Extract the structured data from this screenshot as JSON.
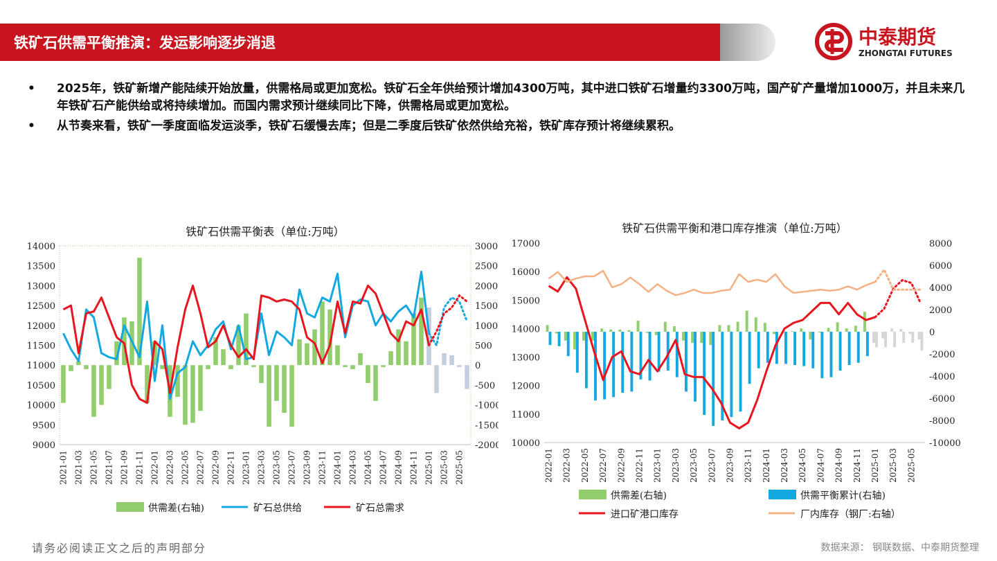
{
  "header": {
    "title": "铁矿石供需平衡推演：发运影响逐步消退"
  },
  "logo": {
    "name": "中泰期货",
    "subtitle": "ZHONGTAI FUTURES",
    "brand_color": "#c8141e"
  },
  "bullets": [
    "2025年，铁矿新增产能陆续开始放量，供需格局或更加宽松。铁矿石全年供给预计增加4300万吨，其中进口铁矿石增量约3300万吨，国产矿产量增加1000万，并且未来几年铁矿石产能供给或将持续增加。而国内需求预计继续同比下降，供需格局或更加宽松。",
    "从节奏来看，铁矿一季度面临发运淡季，铁矿石缓慢去库；但是二季度后铁矿依然供给充裕，铁矿库存预计将继续累积。"
  ],
  "footer": {
    "disclaimer": "请务必阅读正文之后的声明部分",
    "source": "数据来源：  钢联数据、中泰期货整理"
  },
  "chart_data": [
    {
      "type": "line",
      "title": "铁矿石供需平衡表（单位:万吨）",
      "x": [
        "2021-01",
        "2021-02",
        "2021-03",
        "2021-04",
        "2021-05",
        "2021-06",
        "2021-07",
        "2021-08",
        "2021-09",
        "2021-10",
        "2021-11",
        "2021-12",
        "2022-01",
        "2022-02",
        "2022-03",
        "2022-04",
        "2022-05",
        "2022-06",
        "2022-07",
        "2022-08",
        "2022-09",
        "2022-10",
        "2022-11",
        "2022-12",
        "2023-01",
        "2023-02",
        "2023-03",
        "2023-04",
        "2023-05",
        "2023-06",
        "2023-07",
        "2023-08",
        "2023-09",
        "2023-10",
        "2023-11",
        "2023-12",
        "2024-01",
        "2024-02",
        "2024-03",
        "2024-04",
        "2024-05",
        "2024-06",
        "2024-07",
        "2024-08",
        "2024-09",
        "2024-10",
        "2024-11",
        "2024-12",
        "2025-01",
        "2025-02",
        "2025-03",
        "2025-04",
        "2025-05",
        "2025-06"
      ],
      "x_tick_labels": [
        "2021-01",
        "2021-03",
        "2021-05",
        "2021-07",
        "2021-09",
        "2021-11",
        "2022-01",
        "2022-03",
        "2022-05",
        "2022-07",
        "2022-09",
        "2022-11",
        "2023-01",
        "2023-03",
        "2023-05",
        "2023-07",
        "2023-09",
        "2023-11",
        "2024-01",
        "2024-03",
        "2024-05",
        "2024-07",
        "2024-09",
        "2024-11",
        "2025-01",
        "2025-03",
        "2025-05"
      ],
      "ylim_left": [
        9000,
        14000
      ],
      "yticks_left": [
        9000,
        9500,
        10000,
        10500,
        11000,
        11500,
        12000,
        12500,
        13000,
        13500,
        14000
      ],
      "ylim_right": [
        -2000,
        3000
      ],
      "yticks_right": [
        -2000,
        -1500,
        -1000,
        -500,
        0,
        500,
        1000,
        1500,
        2000,
        2500,
        3000
      ],
      "forecast_from_index": 48,
      "series": [
        {
          "name": "供需差(右轴)",
          "type": "bar",
          "axis": "right",
          "color": "#92cd6e",
          "forecast_color": "#b8c7d8",
          "values": [
            -950,
            -150,
            100,
            -100,
            -1300,
            -1000,
            -600,
            600,
            1200,
            1100,
            2700,
            -950,
            600,
            -100,
            -1300,
            -800,
            -1500,
            -1450,
            -1150,
            -100,
            700,
            400,
            -100,
            1000,
            1300,
            -50,
            -450,
            -1550,
            -900,
            -1200,
            -1550,
            650,
            550,
            900,
            1600,
            1400,
            500,
            -50,
            -100,
            300,
            -450,
            -900,
            -50,
            350,
            900,
            600,
            1300,
            1700,
            1450,
            -700,
            300,
            250,
            -50,
            -600
          ]
        },
        {
          "name": "矿石总供给",
          "type": "line",
          "axis": "left",
          "color": "#13a8e0",
          "values": [
            11800,
            11400,
            11100,
            12400,
            12200,
            11300,
            11200,
            11150,
            12000,
            11600,
            11200,
            12600,
            10600,
            12000,
            10150,
            10800,
            10950,
            11600,
            11250,
            11500,
            11900,
            12100,
            11400,
            12000,
            11150,
            11200,
            12300,
            11250,
            11850,
            11700,
            11500,
            12900,
            12300,
            12200,
            12700,
            12600,
            13300,
            11700,
            12500,
            12650,
            12600,
            12000,
            12300,
            12100,
            12350,
            12500,
            12200,
            13350,
            11800,
            11500,
            12450,
            12700,
            12600,
            12100
          ]
        },
        {
          "name": "矿石总需求",
          "type": "line",
          "axis": "left",
          "color": "#e8141e",
          "values": [
            12400,
            12500,
            11300,
            12300,
            12350,
            12700,
            12200,
            11700,
            11550,
            10500,
            10150,
            10050,
            11600,
            11400,
            10300,
            11450,
            12400,
            13000,
            12300,
            11450,
            11600,
            12000,
            11500,
            11200,
            11400,
            11150,
            12750,
            12700,
            12600,
            12650,
            12600,
            12400,
            11700,
            11550,
            11050,
            11500,
            12600,
            11800,
            12600,
            12550,
            13000,
            12800,
            12300,
            11800,
            11600,
            12100,
            12000,
            12400,
            11500,
            11850,
            12300,
            12450,
            12750,
            12600
          ]
        }
      ],
      "legend": [
        "供需差(右轴)",
        "矿石总供给",
        "矿石总需求"
      ],
      "legend_position": "bottom"
    },
    {
      "type": "line",
      "title": "铁矿石供需平衡和港口库存推演（单位:万吨）",
      "x": [
        "2022-01",
        "2022-02",
        "2022-03",
        "2022-04",
        "2022-05",
        "2022-06",
        "2022-07",
        "2022-08",
        "2022-09",
        "2022-10",
        "2022-11",
        "2022-12",
        "2023-01",
        "2023-02",
        "2023-03",
        "2023-04",
        "2023-05",
        "2023-06",
        "2023-07",
        "2023-08",
        "2023-09",
        "2023-10",
        "2023-11",
        "2023-12",
        "2024-01",
        "2024-02",
        "2024-03",
        "2024-04",
        "2024-05",
        "2024-06",
        "2024-07",
        "2024-08",
        "2024-09",
        "2024-10",
        "2024-11",
        "2024-12",
        "2025-01",
        "2025-02",
        "2025-03",
        "2025-04",
        "2025-05",
        "2025-06"
      ],
      "x_tick_labels": [
        "2022-01",
        "2022-03",
        "2022-05",
        "2022-07",
        "2022-09",
        "2022-11",
        "2023-01",
        "2023-03",
        "2023-05",
        "2023-07",
        "2023-09",
        "2023-11",
        "2024-01",
        "2024-03",
        "2024-05",
        "2024-07",
        "2024-09",
        "2024-11",
        "2025-01",
        "2025-03",
        "2025-05"
      ],
      "ylim_left": [
        10000,
        17000
      ],
      "yticks_left": [
        10000,
        11000,
        12000,
        13000,
        14000,
        15000,
        16000,
        17000
      ],
      "ylim_right": [
        -10000,
        8000
      ],
      "yticks_right": [
        -10000,
        -8000,
        -6000,
        -4000,
        -2000,
        0,
        2000,
        4000,
        6000,
        8000
      ],
      "forecast_from_index": 36,
      "series": [
        {
          "name": "供需差(右轴)",
          "type": "bar",
          "axis": "right",
          "color": "#92cd6e",
          "forecast_color": "#cfcfcf",
          "values": [
            600,
            -150,
            -800,
            -1600,
            -800,
            -800,
            300,
            200,
            200,
            150,
            1000,
            -100,
            -300,
            900,
            500,
            -800,
            -1000,
            -1000,
            -1200,
            600,
            600,
            900,
            1900,
            1300,
            800,
            -200,
            -50,
            50,
            300,
            -700,
            -50,
            350,
            850,
            300,
            550,
            1800,
            -1000,
            -600,
            300,
            250,
            -200,
            -700
          ]
        },
        {
          "name": "供需平衡累计(右轴)",
          "type": "bar",
          "axis": "right",
          "color": "#13a8e0",
          "forecast_color": "#cfcfcf",
          "values": [
            -1200,
            -1300,
            -2200,
            -3700,
            -5100,
            -6200,
            -6100,
            -5900,
            -5500,
            -5400,
            -4300,
            -4400,
            -3600,
            -3500,
            -4100,
            -5400,
            -6300,
            -7500,
            -8500,
            -8000,
            -7700,
            -7200,
            -4700,
            -3300,
            -2800,
            -2900,
            -2900,
            -3000,
            -3100,
            -3300,
            -4200,
            -4100,
            -3500,
            -3000,
            -2800,
            -2200,
            -1400,
            -1400,
            -1400,
            -1000,
            -1000,
            -1700
          ]
        },
        {
          "name": "进口矿港口库存",
          "type": "line",
          "axis": "left",
          "color": "#e8141e",
          "values": [
            15500,
            15300,
            15800,
            15400,
            14300,
            13200,
            12200,
            13000,
            13200,
            12500,
            12400,
            12900,
            12500,
            13000,
            13600,
            12400,
            12300,
            12300,
            11900,
            11400,
            10700,
            10500,
            10700,
            11500,
            12500,
            13400,
            14000,
            14200,
            14300,
            14600,
            14900,
            14900,
            14500,
            14900,
            14500,
            14300,
            14400,
            14700,
            15400,
            15700,
            15600,
            14900
          ]
        },
        {
          "name": "厂内库存（钢厂:右轴）",
          "type": "line",
          "axis": "right",
          "color": "#f4b183",
          "values": [
            4800,
            5400,
            4500,
            4800,
            5000,
            5000,
            5500,
            4000,
            4300,
            4900,
            4300,
            3600,
            4300,
            3700,
            3300,
            3500,
            3800,
            3500,
            3500,
            3700,
            3800,
            5200,
            4500,
            4700,
            4500,
            5200,
            4100,
            3500,
            3600,
            3700,
            3800,
            3700,
            3800,
            4100,
            3800,
            4200,
            4500,
            5600,
            3800,
            3800,
            3800,
            3800
          ]
        }
      ],
      "legend": [
        "供需差(右轴)",
        "供需平衡累计(右轴)",
        "进口矿港口库存",
        "厂内库存（钢厂:右轴）"
      ],
      "legend_position": "bottom"
    }
  ]
}
